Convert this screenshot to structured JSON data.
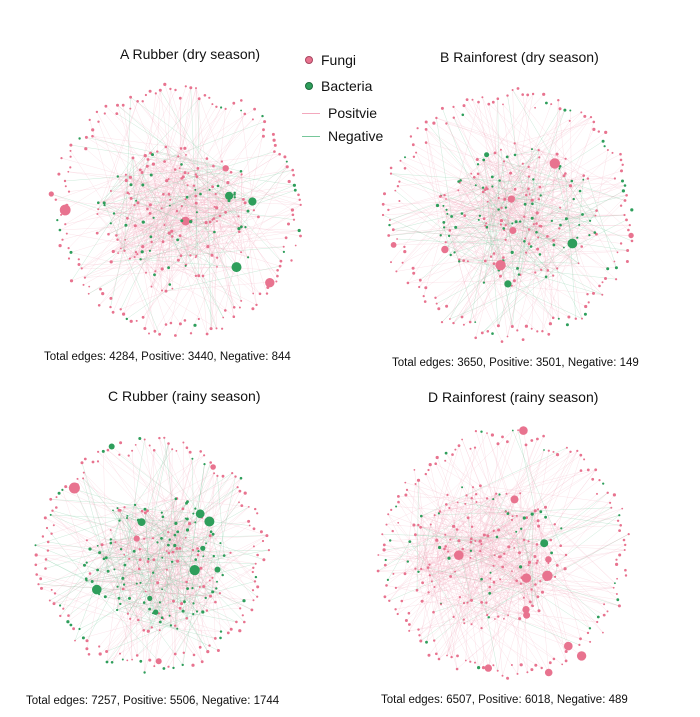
{
  "colors": {
    "fungi": "#e8738f",
    "bacteria": "#2e9e5b",
    "positive": "#f3a8bd",
    "negative": "#76c79a"
  },
  "legend": {
    "fungi_label": "Fungi",
    "bacteria_label": "Bacteria",
    "positive_label": "Positvie",
    "negative_label": "Negative"
  },
  "panels": [
    {
      "title": "A Rubber  (dry season)",
      "caption": "Total edges: 4284,  Positive: 3440, Negative: 844",
      "edges_total": 4284,
      "edges_positive": 3440,
      "edges_negative": 844
    },
    {
      "title": "B Rainforest (dry season)",
      "caption": "Total edges: 3650,  Positive:  3501, Negative:  149",
      "edges_total": 3650,
      "edges_positive": 3501,
      "edges_negative": 149
    },
    {
      "title": "C Rubber  (rainy season)",
      "caption": "Total edges: 7257,   Positive:  5506, Negative:  1744",
      "edges_total": 7257,
      "edges_positive": 5506,
      "edges_negative": 1744
    },
    {
      "title": "D Rainforest (rainy season)",
      "caption": "Total edges: 6507,  Positive: 6018, Negative: 489",
      "edges_total": 6507,
      "edges_positive": 6018,
      "edges_negative": 489
    }
  ]
}
